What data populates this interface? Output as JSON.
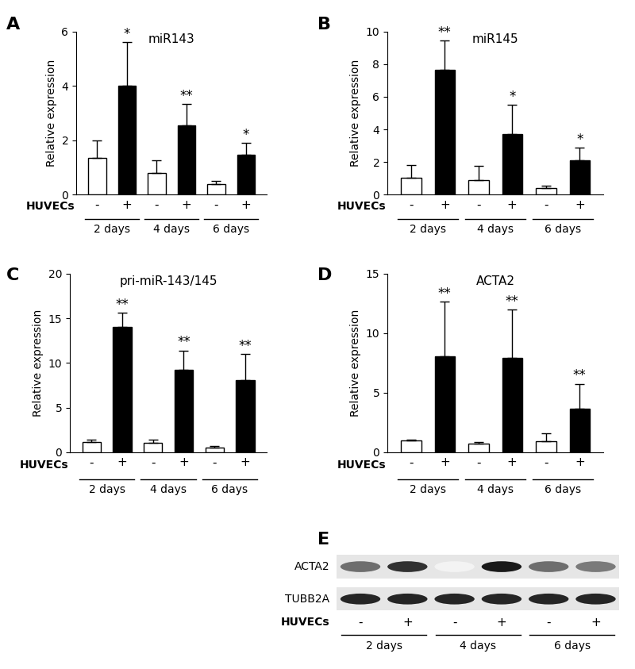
{
  "chart_data": [
    {
      "type": "bar",
      "panel_label": "A",
      "title": "miR143",
      "y_label": "Relative expression",
      "categories": [
        "-",
        "+",
        "-",
        "+",
        "-",
        "+"
      ],
      "groups": [
        "2 days",
        "4 days",
        "6 days"
      ],
      "row_label": "HUVECs",
      "values": [
        1.35,
        4.0,
        0.8,
        2.55,
        0.38,
        1.48
      ],
      "errors": [
        0.65,
        1.6,
        0.45,
        0.78,
        0.13,
        0.42
      ],
      "colors": [
        "#ffffff",
        "#000000",
        "#ffffff",
        "#000000",
        "#ffffff",
        "#000000"
      ],
      "annotations": [
        {
          "index": 1,
          "text": "*"
        },
        {
          "index": 3,
          "text": "**"
        },
        {
          "index": 5,
          "text": "*"
        }
      ],
      "ylim": [
        0,
        6
      ],
      "yticks": [
        0,
        2,
        4,
        6
      ]
    },
    {
      "type": "bar",
      "panel_label": "B",
      "title": "miR145",
      "y_label": "Relative expression",
      "categories": [
        "-",
        "+",
        "-",
        "+",
        "-",
        "+"
      ],
      "groups": [
        "2 days",
        "4 days",
        "6 days"
      ],
      "row_label": "HUVECs",
      "values": [
        1.05,
        7.65,
        0.9,
        3.7,
        0.4,
        2.1
      ],
      "errors": [
        0.75,
        1.8,
        0.85,
        1.8,
        0.15,
        0.8
      ],
      "colors": [
        "#ffffff",
        "#000000",
        "#ffffff",
        "#000000",
        "#ffffff",
        "#000000"
      ],
      "annotations": [
        {
          "index": 1,
          "text": "**"
        },
        {
          "index": 3,
          "text": "*"
        },
        {
          "index": 5,
          "text": "*"
        }
      ],
      "ylim": [
        0,
        10
      ],
      "yticks": [
        0,
        2,
        4,
        6,
        8,
        10
      ]
    },
    {
      "type": "bar",
      "panel_label": "C",
      "title": "pri-miR-143/145",
      "y_label": "Relative expression",
      "categories": [
        "-",
        "+",
        "-",
        "+",
        "-",
        "+"
      ],
      "groups": [
        "2 days",
        "4 days",
        "6 days"
      ],
      "row_label": "HUVECs",
      "values": [
        1.1,
        14.0,
        1.05,
        9.2,
        0.55,
        8.1
      ],
      "errors": [
        0.3,
        1.6,
        0.4,
        2.2,
        0.15,
        2.9
      ],
      "colors": [
        "#ffffff",
        "#000000",
        "#ffffff",
        "#000000",
        "#ffffff",
        "#000000"
      ],
      "annotations": [
        {
          "index": 1,
          "text": "**"
        },
        {
          "index": 3,
          "text": "**"
        },
        {
          "index": 5,
          "text": "**"
        }
      ],
      "ylim": [
        0,
        20
      ],
      "yticks": [
        0,
        5,
        10,
        15,
        20
      ]
    },
    {
      "type": "bar",
      "panel_label": "D",
      "title": "ACTA2",
      "y_label": "Relative expression",
      "categories": [
        "-",
        "+",
        "-",
        "+",
        "-",
        "+"
      ],
      "groups": [
        "2 days",
        "4 days",
        "6 days"
      ],
      "row_label": "HUVECs",
      "values": [
        1.0,
        8.05,
        0.75,
        7.9,
        0.95,
        3.65
      ],
      "errors": [
        0.05,
        4.6,
        0.1,
        4.1,
        0.65,
        2.1
      ],
      "colors": [
        "#ffffff",
        "#000000",
        "#ffffff",
        "#000000",
        "#ffffff",
        "#000000"
      ],
      "annotations": [
        {
          "index": 1,
          "text": "**"
        },
        {
          "index": 3,
          "text": "**"
        },
        {
          "index": 5,
          "text": "**"
        }
      ],
      "ylim": [
        0,
        15
      ],
      "yticks": [
        0,
        5,
        10,
        15
      ]
    }
  ],
  "blot": {
    "panel_label": "E",
    "rows": [
      {
        "name": "ACTA2",
        "intensities": [
          0.6,
          0.85,
          0.05,
          0.95,
          0.6,
          0.55
        ]
      },
      {
        "name": "TUBB2A",
        "intensities": [
          0.9,
          0.9,
          0.9,
          0.9,
          0.9,
          0.9
        ]
      }
    ],
    "categories": [
      "-",
      "+",
      "-",
      "+",
      "-",
      "+"
    ],
    "groups": [
      "2 days",
      "4 days",
      "6 days"
    ],
    "row_label": "HUVECs"
  }
}
